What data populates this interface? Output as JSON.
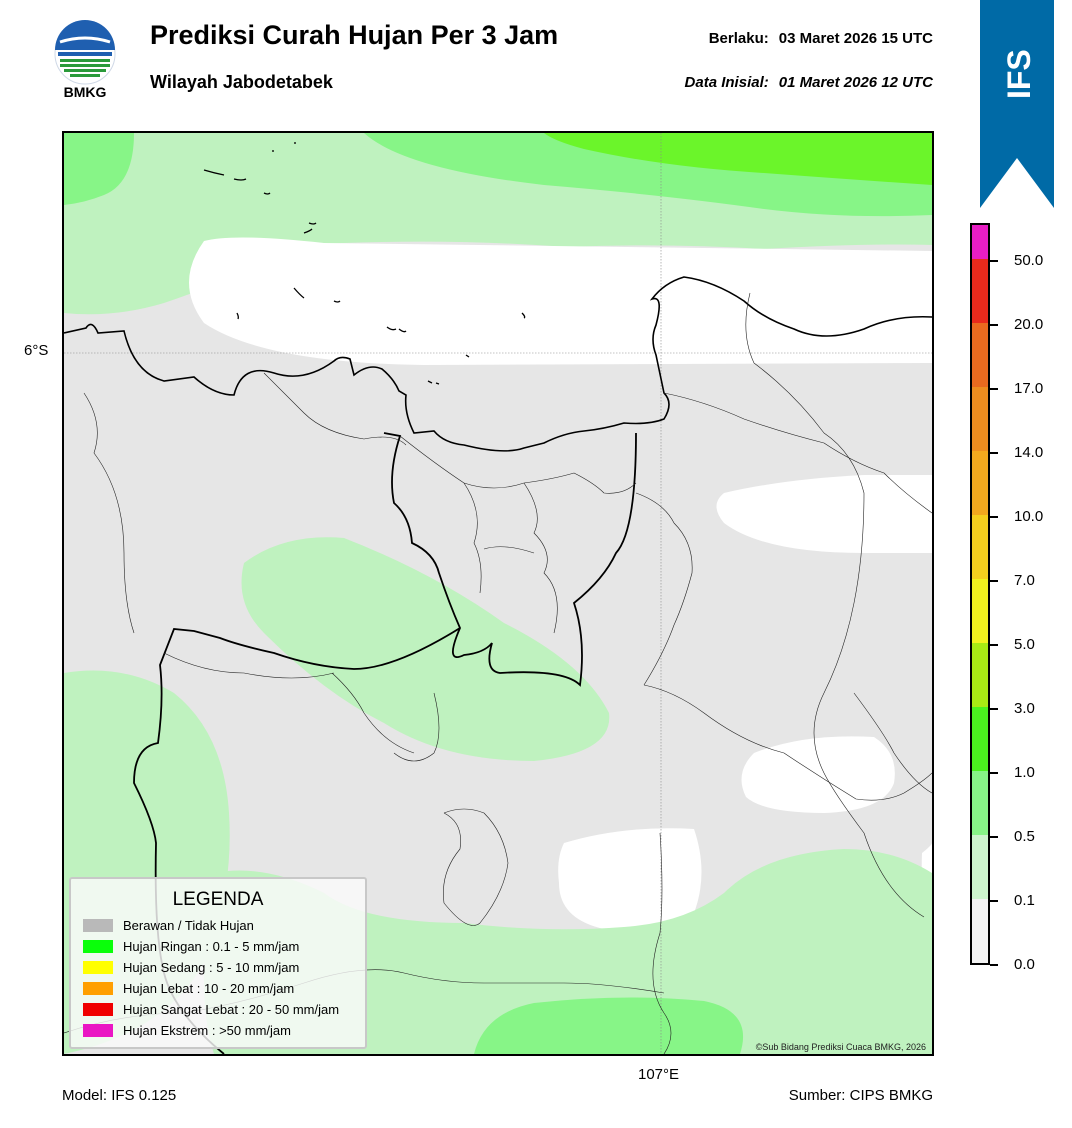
{
  "header": {
    "logo_text": "BMKG",
    "title": "Prediksi Curah Hujan Per 3 Jam",
    "subtitle": "Wilayah Jabodetabek",
    "valid_label": "Berlaku:",
    "valid_value": "03 Maret 2026 15 UTC",
    "init_label": "Data Inisial:",
    "init_value": "01 Maret 2026 12 UTC",
    "model_badge": "IFS"
  },
  "map": {
    "lat_label": "6°S",
    "lon_label": "107°E",
    "copyright": "©Sub Bidang Prediksi Cuaca BMKG, 2026",
    "colors": {
      "no_rain": "#ffffff",
      "very_light": "#e6e6e6",
      "light_1": "#bff2bf",
      "light_2": "#87f587",
      "moderate": "#6bf52a",
      "border": "#000000"
    }
  },
  "legend": {
    "title": "LEGENDA",
    "items": [
      {
        "label": "Berawan / Tidak Hujan",
        "color": "#b9b9b9"
      },
      {
        "label": "Hujan Ringan : 0.1 - 5 mm/jam",
        "color": "#0aff0a"
      },
      {
        "label": "Hujan Sedang : 5 - 10 mm/jam",
        "color": "#ffff00"
      },
      {
        "label": "Hujan Lebat : 10 - 20 mm/jam",
        "color": "#ff9f00"
      },
      {
        "label": "Hujan Sangat Lebat : 20 - 50 mm/jam",
        "color": "#f00000"
      },
      {
        "label": "Hujan Ekstrem : >50 mm/jam",
        "color": "#ea16c4"
      }
    ]
  },
  "colorbar": {
    "ticks": [
      "0.0",
      "0.1",
      "0.5",
      "1.0",
      "3.0",
      "5.0",
      "7.0",
      "10.0",
      "14.0",
      "17.0",
      "20.0",
      "50.0"
    ],
    "segments": [
      "#f3f3f3",
      "#cdf5cd",
      "#87f587",
      "#4bf21e",
      "#a8ea14",
      "#f2f21e",
      "#f5cf1e",
      "#f2a81e",
      "#ee8d1f",
      "#ea6a1f",
      "#e82a1c",
      "#e81ec4"
    ]
  },
  "footer": {
    "model": "Model: IFS 0.125",
    "source": "Sumber: CIPS BMKG"
  }
}
